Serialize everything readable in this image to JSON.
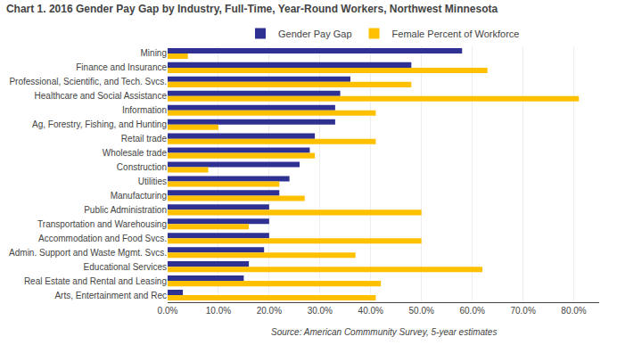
{
  "chart_data": {
    "type": "bar",
    "orientation": "horizontal",
    "title": "Chart 1. 2016 Gender Pay Gap by Industry, Full-Time, Year-Round Workers, Northwest Minnesota",
    "annotations": [
      "Source: American Commmunity Survey, 5-year estimates"
    ],
    "categories": [
      "Mining",
      "Finance and Insurance",
      "Professional, Scientific, and Tech. Svcs.",
      "Healthcare and Social Assistance",
      "Information",
      "Ag, Forestry, Fishing, and Hunting",
      "Retail trade",
      "Wholesale trade",
      "Construction",
      "Utilities",
      "Manufacturing",
      "Public Administration",
      "Transportation and Warehousing",
      "Accommodation and Food Svcs.",
      "Admin. Support and Waste Mgmt. Svcs.",
      "Educational Services",
      "Real Estate and Rental and Leasing",
      "Arts, Entertainment and Rec"
    ],
    "series": [
      {
        "name": "Gender Pay Gap",
        "color": "#2e3192",
        "values": [
          0.58,
          0.48,
          0.36,
          0.34,
          0.33,
          0.33,
          0.29,
          0.28,
          0.26,
          0.24,
          0.22,
          0.2,
          0.2,
          0.2,
          0.19,
          0.16,
          0.15,
          0.03
        ]
      },
      {
        "name": "Female Percent of Workforce",
        "color": "#ffc000",
        "values": [
          0.04,
          0.63,
          0.48,
          0.81,
          0.41,
          0.1,
          0.41,
          0.29,
          0.08,
          0.22,
          0.27,
          0.5,
          0.16,
          0.5,
          0.37,
          0.62,
          0.42,
          0.41
        ]
      }
    ],
    "xlim": [
      0,
      0.85
    ],
    "xticks": [
      {
        "value": 0.0,
        "label": "0.0%"
      },
      {
        "value": 0.1,
        "label": "10.0%"
      },
      {
        "value": 0.2,
        "label": "20.0%"
      },
      {
        "value": 0.3,
        "label": "30.0%"
      },
      {
        "value": 0.4,
        "label": "40.0%"
      },
      {
        "value": 0.5,
        "label": "50.0%"
      },
      {
        "value": 0.6,
        "label": "60.0%"
      },
      {
        "value": 0.7,
        "label": "70.0%"
      },
      {
        "value": 0.8,
        "label": "80.0%"
      }
    ],
    "grid": true,
    "legend": "top"
  }
}
